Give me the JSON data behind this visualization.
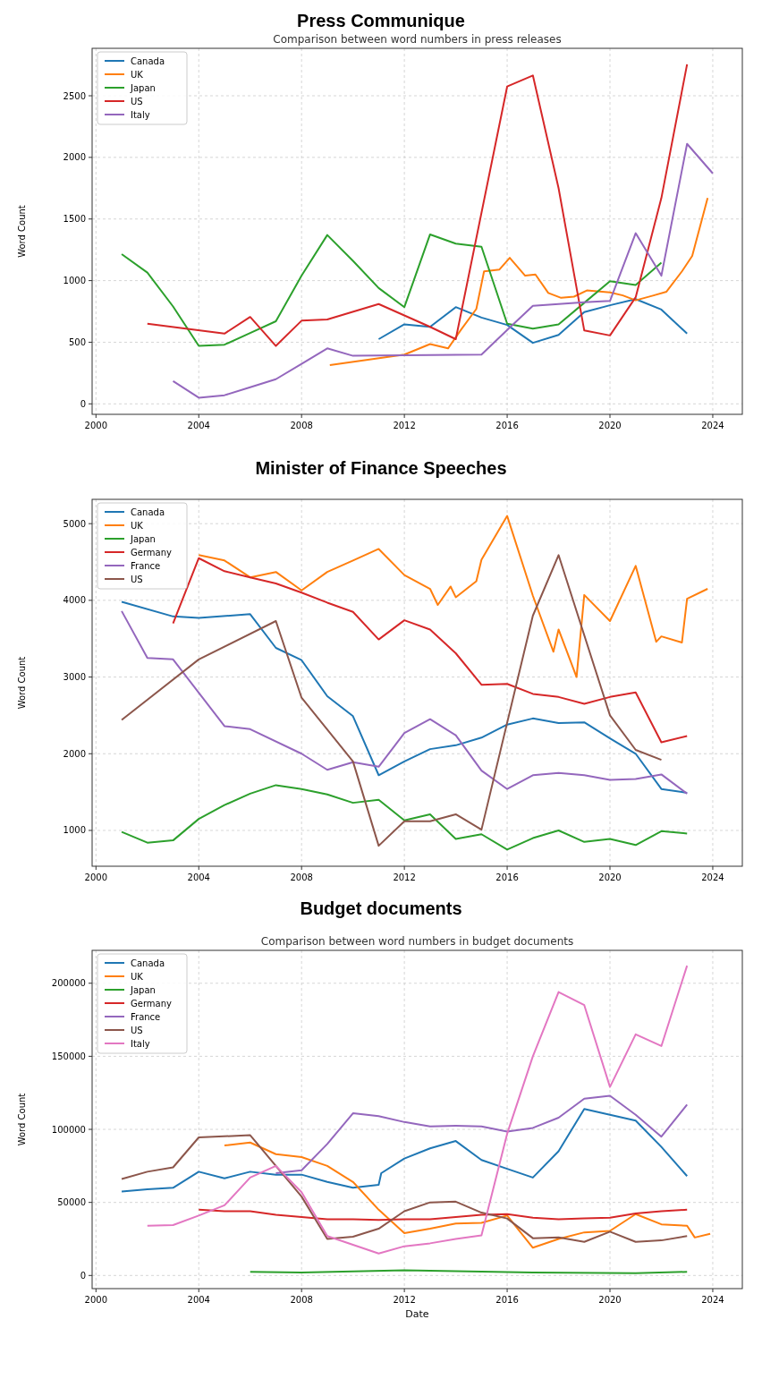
{
  "chart_data": [
    {
      "type": "line",
      "title": "Press Communique",
      "subtitle": "Comparison between word numbers in press releases",
      "ylabel": "Word Count",
      "xlim": [
        1999.85,
        2025.15
      ],
      "ylim": [
        -85,
        2885
      ],
      "xticks": [
        2000,
        2004,
        2008,
        2012,
        2016,
        2020,
        2024
      ],
      "yticks": [
        0,
        500,
        1000,
        1500,
        2000,
        2500
      ],
      "grid": true,
      "legend": "top left",
      "series": [
        {
          "name": "Canada",
          "color": "#1f77b4",
          "x": [
            2011,
            2012,
            2013,
            2014,
            2015,
            2016,
            2017,
            2018,
            2019,
            2020,
            2021,
            2022,
            2023
          ],
          "values": [
            525,
            645,
            625,
            785,
            700,
            640,
            495,
            560,
            745,
            800,
            850,
            765,
            570
          ]
        },
        {
          "name": "UK",
          "color": "#ff7f0e",
          "x": [
            2009.1,
            2012,
            2013,
            2013.7,
            2014.2,
            2014.8,
            2015.1,
            2015.7,
            2016.1,
            2016.7,
            2017.1,
            2017.6,
            2018.1,
            2018.6,
            2019.1,
            2020,
            2020.5,
            2021,
            2021.7,
            2022.2,
            2022.8,
            2023.2,
            2023.8
          ],
          "values": [
            315,
            400,
            485,
            450,
            600,
            770,
            1075,
            1090,
            1185,
            1040,
            1050,
            900,
            860,
            870,
            920,
            905,
            880,
            840,
            880,
            910,
            1075,
            1200,
            1670
          ]
        },
        {
          "name": "Japan",
          "color": "#2ca02c",
          "x": [
            2001,
            2002,
            2003,
            2004,
            2005,
            2006,
            2007,
            2008,
            2009,
            2010,
            2011,
            2012,
            2013,
            2014,
            2015,
            2016,
            2017,
            2018,
            2019,
            2020,
            2021,
            2022
          ],
          "values": [
            1215,
            1065,
            790,
            470,
            480,
            575,
            670,
            1040,
            1370,
            1160,
            940,
            785,
            1375,
            1300,
            1275,
            650,
            610,
            645,
            820,
            995,
            965,
            1145
          ]
        },
        {
          "name": "US",
          "color": "#d62728",
          "x": [
            2002,
            2005,
            2006,
            2007,
            2008,
            2009,
            2011,
            2013,
            2014,
            2016,
            2017,
            2018,
            2019,
            2020,
            2021,
            2022,
            2023
          ],
          "values": [
            650,
            570,
            705,
            470,
            675,
            685,
            810,
            625,
            525,
            2575,
            2665,
            1750,
            595,
            555,
            865,
            1670,
            2755
          ]
        },
        {
          "name": "Italy",
          "color": "#9467bd",
          "x": [
            2003,
            2004,
            2005,
            2006,
            2007,
            2008,
            2009,
            2010,
            2012,
            2015,
            2016,
            2017,
            2019,
            2020,
            2021,
            2022,
            2023,
            2024
          ],
          "values": [
            185,
            50,
            70,
            135,
            200,
            325,
            450,
            390,
            395,
            400,
            600,
            795,
            825,
            835,
            1385,
            1040,
            2110,
            1870
          ]
        }
      ]
    },
    {
      "type": "line",
      "title": "Minister of Finance Speeches",
      "ylabel": "Word Count",
      "xlim": [
        1999.85,
        2025.15
      ],
      "ylim": [
        533,
        5317
      ],
      "xticks": [
        2000,
        2004,
        2008,
        2012,
        2016,
        2020,
        2024
      ],
      "yticks": [
        1000,
        2000,
        3000,
        4000,
        5000
      ],
      "grid": true,
      "legend": "top left",
      "series": [
        {
          "name": "Canada",
          "color": "#1f77b4",
          "x": [
            2001,
            2003,
            2004,
            2006,
            2007,
            2008,
            2009,
            2010,
            2011,
            2012,
            2013,
            2014,
            2015,
            2016,
            2017,
            2018,
            2019,
            2020,
            2021,
            2022,
            2023
          ],
          "values": [
            3980,
            3790,
            3770,
            3820,
            3380,
            3220,
            2750,
            2490,
            1720,
            1900,
            2060,
            2110,
            2210,
            2380,
            2460,
            2400,
            2410,
            2200,
            2000,
            1540,
            1490
          ]
        },
        {
          "name": "UK",
          "color": "#ff7f0e",
          "x": [
            2004,
            2005,
            2006,
            2007,
            2008,
            2009,
            2010,
            2011,
            2012,
            2013,
            2013.3,
            2013.8,
            2014,
            2014.8,
            2015,
            2016,
            2017,
            2017.8,
            2018,
            2018.7,
            2019,
            2020,
            2021,
            2021.8,
            2022,
            2022.8,
            2023,
            2023.8
          ],
          "values": [
            4590,
            4520,
            4300,
            4370,
            4130,
            4370,
            4520,
            4670,
            4330,
            4150,
            3940,
            4180,
            4040,
            4250,
            4530,
            5100,
            4060,
            3330,
            3620,
            3000,
            4070,
            3730,
            4450,
            3460,
            3530,
            3450,
            4020,
            4150
          ]
        },
        {
          "name": "Japan",
          "color": "#2ca02c",
          "x": [
            2001,
            2002,
            2003,
            2004,
            2005,
            2006,
            2007,
            2008,
            2009,
            2010,
            2011,
            2012,
            2013,
            2014,
            2015,
            2016,
            2017,
            2018,
            2019,
            2020,
            2021,
            2022,
            2023
          ],
          "values": [
            980,
            840,
            870,
            1150,
            1330,
            1480,
            1590,
            1540,
            1470,
            1360,
            1400,
            1130,
            1210,
            890,
            950,
            750,
            900,
            1000,
            850,
            890,
            810,
            990,
            960
          ]
        },
        {
          "name": "Germany",
          "color": "#d62728",
          "x": [
            2003,
            2004,
            2005,
            2006,
            2007,
            2008,
            2009,
            2010,
            2011,
            2012,
            2013,
            2014,
            2015,
            2016,
            2017,
            2018,
            2019,
            2020,
            2021,
            2022,
            2023
          ],
          "values": [
            3700,
            4550,
            4380,
            4300,
            4220,
            4100,
            3970,
            3850,
            3490,
            3740,
            3620,
            3310,
            2900,
            2910,
            2780,
            2740,
            2650,
            2740,
            2800,
            2150,
            2230
          ]
        },
        {
          "name": "France",
          "color": "#9467bd",
          "x": [
            2001,
            2002,
            2003,
            2005,
            2006,
            2008,
            2009,
            2010,
            2011,
            2012,
            2013,
            2014,
            2015,
            2016,
            2017,
            2018,
            2019,
            2020,
            2021,
            2022,
            2023
          ],
          "values": [
            3860,
            3250,
            3230,
            2360,
            2320,
            2000,
            1790,
            1890,
            1830,
            2270,
            2450,
            2240,
            1780,
            1540,
            1720,
            1750,
            1720,
            1660,
            1670,
            1730,
            1480
          ]
        },
        {
          "name": "US",
          "color": "#8c564b",
          "x": [
            2001,
            2004,
            2007,
            2008,
            2010,
            2011,
            2012,
            2013,
            2014,
            2015,
            2017,
            2018,
            2020,
            2021,
            2022
          ],
          "values": [
            2440,
            3230,
            3730,
            2730,
            1900,
            800,
            1120,
            1120,
            1210,
            1010,
            3800,
            4590,
            2500,
            2050,
            1920
          ]
        }
      ]
    },
    {
      "type": "line",
      "title": "Budget documents",
      "subtitle": "Comparison between word numbers in budget documents",
      "xlabel": "Date",
      "ylabel": "Word Count",
      "xlim": [
        1999.85,
        2025.15
      ],
      "ylim": [
        -9000,
        222500
      ],
      "xticks": [
        2000,
        2004,
        2008,
        2012,
        2016,
        2020,
        2024
      ],
      "yticks": [
        0,
        50000,
        100000,
        150000,
        200000
      ],
      "grid": true,
      "legend": "top left",
      "series": [
        {
          "name": "Canada",
          "color": "#1f77b4",
          "x": [
            2001,
            2002,
            2003,
            2004,
            2005,
            2006,
            2007,
            2008,
            2009,
            2010,
            2011,
            2011.1,
            2012,
            2013,
            2014,
            2015,
            2016,
            2017,
            2018,
            2019,
            2020,
            2021,
            2022,
            2023
          ],
          "values": [
            57500,
            59000,
            60000,
            71000,
            66500,
            71000,
            69000,
            69000,
            64000,
            60000,
            62000,
            70000,
            80000,
            87000,
            92000,
            79000,
            73000,
            67000,
            85000,
            114000,
            110000,
            106000,
            88000,
            68000
          ]
        },
        {
          "name": "UK",
          "color": "#ff7f0e",
          "x": [
            2005,
            2006,
            2007,
            2008,
            2009,
            2010,
            2011,
            2012,
            2013,
            2014,
            2015,
            2016,
            2017,
            2018,
            2019,
            2020,
            2021,
            2022,
            2023,
            2023.3,
            2023.9
          ],
          "values": [
            89000,
            91000,
            83000,
            81000,
            75000,
            64000,
            45000,
            29000,
            32000,
            35500,
            36000,
            41000,
            19000,
            25000,
            29500,
            30500,
            42000,
            35000,
            34000,
            26000,
            28500
          ]
        },
        {
          "name": "Japan",
          "color": "#2ca02c",
          "x": [
            2006,
            2008,
            2012,
            2014,
            2017,
            2021,
            2023
          ],
          "values": [
            2500,
            2000,
            3500,
            3000,
            2000,
            1500,
            2500
          ]
        },
        {
          "name": "Germany",
          "color": "#d62728",
          "x": [
            2004,
            2005,
            2006,
            2007,
            2008,
            2009,
            2010,
            2011,
            2012,
            2013,
            2014,
            2015,
            2016,
            2017,
            2018,
            2019,
            2020,
            2021,
            2022,
            2023
          ],
          "values": [
            45000,
            44000,
            44000,
            41500,
            40000,
            38500,
            38500,
            38000,
            38500,
            38500,
            40000,
            41500,
            42000,
            39500,
            38500,
            39000,
            39500,
            42500,
            44000,
            45000
          ]
        },
        {
          "name": "France",
          "color": "#9467bd",
          "x": [
            2007,
            2008,
            2009,
            2010,
            2011,
            2012,
            2013,
            2014,
            2015,
            2016,
            2017,
            2018,
            2019,
            2020,
            2021,
            2022,
            2023
          ],
          "values": [
            70000,
            72000,
            90000,
            111000,
            109000,
            105000,
            102000,
            102500,
            102000,
            98500,
            101000,
            108000,
            121000,
            123000,
            110000,
            95000,
            117000
          ]
        },
        {
          "name": "US",
          "color": "#8c564b",
          "x": [
            2001,
            2002,
            2003,
            2004,
            2006,
            2007,
            2008,
            2009,
            2010,
            2011,
            2012,
            2013,
            2014,
            2015,
            2016,
            2017,
            2018,
            2019,
            2020,
            2021,
            2022,
            2023
          ],
          "values": [
            66000,
            71000,
            74000,
            94500,
            96000,
            75000,
            54000,
            25000,
            26500,
            32000,
            44000,
            50000,
            50500,
            43000,
            39000,
            25500,
            26000,
            23000,
            30000,
            23000,
            24000,
            27000
          ]
        },
        {
          "name": "Italy",
          "color": "#e377c2",
          "x": [
            2002,
            2003,
            2004,
            2005,
            2006,
            2007,
            2008,
            2009,
            2010,
            2011,
            2012,
            2013,
            2014,
            2015,
            2016,
            2017,
            2018,
            2019,
            2020,
            2021,
            2022,
            2023
          ],
          "values": [
            34000,
            34500,
            41000,
            48000,
            67000,
            75000,
            57000,
            27000,
            21000,
            15000,
            20000,
            22000,
            25000,
            27500,
            97000,
            150000,
            194000,
            185000,
            129000,
            165000,
            157000,
            212000
          ]
        }
      ]
    }
  ]
}
